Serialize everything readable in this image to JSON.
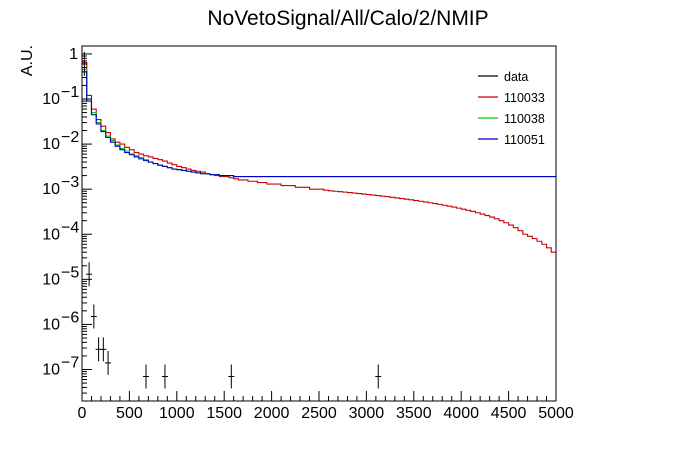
{
  "chart_data": {
    "type": "line",
    "title": "NoVetoSignal/All/Calo/2/NMIP",
    "xlabel": "",
    "ylabel": "A.U.",
    "xlim": [
      0,
      5000
    ],
    "ylim": [
      2e-08,
      1.5
    ],
    "yscale": "log",
    "grid": false,
    "legend_position": "top-right",
    "bin_width": 50,
    "x_ticks": [
      "0",
      "500",
      "1000",
      "1500",
      "2000",
      "2500",
      "3000",
      "3500",
      "4000",
      "4500",
      "5000"
    ],
    "y_ticks": [
      {
        "base": "1",
        "exp": ""
      },
      {
        "base": "10",
        "exp": "−1"
      },
      {
        "base": "10",
        "exp": "−2"
      },
      {
        "base": "10",
        "exp": "−3"
      },
      {
        "base": "10",
        "exp": "−4"
      },
      {
        "base": "10",
        "exp": "−5"
      },
      {
        "base": "10",
        "exp": "−6"
      },
      {
        "base": "10",
        "exp": "−7"
      }
    ],
    "data_points": {
      "name": "data",
      "color": "#000000",
      "points": [
        {
          "x": 25,
          "y": 0.6
        },
        {
          "x": 75,
          "y": 1.3e-05
        },
        {
          "x": 125,
          "y": 1.5e-06
        },
        {
          "x": 175,
          "y": 2.8e-07
        },
        {
          "x": 225,
          "y": 2.8e-07
        },
        {
          "x": 275,
          "y": 1.4e-07
        },
        {
          "x": 675,
          "y": 7e-08
        },
        {
          "x": 875,
          "y": 7e-08
        },
        {
          "x": 1575,
          "y": 7e-08
        },
        {
          "x": 3125,
          "y": 7e-08
        }
      ]
    },
    "series": [
      {
        "name": "110033",
        "color": "#cc0000",
        "values": [
          0.65,
          0.12,
          0.06,
          0.035,
          0.025,
          0.018,
          0.013,
          0.011,
          0.01,
          0.0085,
          0.0075,
          0.0065,
          0.006,
          0.0055,
          0.0052,
          0.0048,
          0.0045,
          0.0042,
          0.0038,
          0.0035,
          0.0032,
          0.003,
          0.0028,
          0.0026,
          0.0025,
          0.0024,
          0.0022,
          0.0021,
          0.002,
          0.0019,
          0.0019,
          0.0018,
          0.0017,
          0.0016,
          0.0016,
          0.0015,
          0.0015,
          0.0014,
          0.0014,
          0.0013,
          0.0013,
          0.0013,
          0.0012,
          0.0012,
          0.0012,
          0.0011,
          0.0011,
          0.0011,
          0.001,
          0.001,
          0.001,
          0.00095,
          0.00092,
          0.0009,
          0.00088,
          0.00086,
          0.00084,
          0.00082,
          0.0008,
          0.00078,
          0.00076,
          0.00074,
          0.00072,
          0.0007,
          0.00068,
          0.00066,
          0.00064,
          0.00062,
          0.0006,
          0.00058,
          0.00056,
          0.00054,
          0.00052,
          0.0005,
          0.00048,
          0.00046,
          0.00044,
          0.00042,
          0.0004,
          0.00038,
          0.00036,
          0.00034,
          0.00032,
          0.0003,
          0.00028,
          0.00026,
          0.00024,
          0.00022,
          0.0002,
          0.00018,
          0.00016,
          0.00014,
          0.00012,
          0.0001,
          9e-05,
          8e-05,
          7e-05,
          6e-05,
          5e-05,
          4e-05
        ]
      },
      {
        "name": "110038",
        "color": "#00cc00",
        "values": [
          0.45,
          0.1,
          0.05,
          0.03,
          0.02,
          0.015,
          0.012,
          0.0095,
          0.008,
          0.007,
          0.006,
          0.0055,
          0.005,
          0.0045,
          0.004,
          0.0037,
          0.0034,
          0.0032,
          0.003,
          0.0028,
          0.0027,
          0.0026,
          0.0025,
          0.0024,
          0.0023,
          0.0022,
          0.0022,
          0.0021,
          0.0021,
          0.002,
          0.002,
          0.002,
          0.0019,
          0.0019,
          0.0019,
          0.0019,
          0.0019,
          0.0019,
          0.0019,
          0.0019,
          0.0019,
          0.0019,
          0.0019,
          0.0019,
          0.0019,
          0.0019,
          0.0019,
          0.0019,
          0.0019,
          0.0019,
          0.0019,
          0.0019,
          0.0019,
          0.0019,
          0.0019,
          0.0019,
          0.0019,
          0.0019,
          0.0019,
          0.0019,
          0.0019,
          0.0019,
          0.0019,
          0.0019,
          0.0019,
          0.0019,
          0.0019,
          0.0019,
          0.0019,
          0.0019,
          0.0019,
          0.0019,
          0.0019,
          0.0019,
          0.0019,
          0.0019,
          0.0019,
          0.0019,
          0.0019,
          0.0019,
          0.0019,
          0.0019,
          0.0019,
          0.0019,
          0.0019,
          0.0019,
          0.0019,
          0.0019,
          0.0019,
          0.0019,
          0.0019,
          0.0019,
          0.0019,
          0.0019,
          0.0019,
          0.0019,
          0.0019,
          0.0019,
          0.0019,
          0.0019
        ]
      },
      {
        "name": "110051",
        "color": "#0000cc",
        "values": [
          0.4,
          0.09,
          0.045,
          0.028,
          0.019,
          0.014,
          0.011,
          0.009,
          0.0075,
          0.0065,
          0.0058,
          0.0052,
          0.0047,
          0.0043,
          0.004,
          0.0037,
          0.0034,
          0.0032,
          0.003,
          0.0028,
          0.0027,
          0.0026,
          0.0025,
          0.0024,
          0.0023,
          0.0022,
          0.0022,
          0.0021,
          0.0021,
          0.002,
          0.002,
          0.002,
          0.0019,
          0.0019,
          0.0019,
          0.0019,
          0.0019,
          0.0019,
          0.0019,
          0.0019,
          0.0019,
          0.0019,
          0.0019,
          0.0019,
          0.0019,
          0.0019,
          0.0019,
          0.0019,
          0.0019,
          0.0019,
          0.0019,
          0.0019,
          0.0019,
          0.0019,
          0.0019,
          0.0019,
          0.0019,
          0.0019,
          0.0019,
          0.0019,
          0.0019,
          0.0019,
          0.0019,
          0.0019,
          0.0019,
          0.0019,
          0.0019,
          0.0019,
          0.0019,
          0.0019,
          0.0019,
          0.0019,
          0.0019,
          0.0019,
          0.0019,
          0.0019,
          0.0019,
          0.0019,
          0.0019,
          0.0019,
          0.0019,
          0.0019,
          0.0019,
          0.0019,
          0.0019,
          0.0019,
          0.0019,
          0.0019,
          0.0019,
          0.0019,
          0.0019,
          0.0019,
          0.0019,
          0.0019,
          0.0019,
          0.0019,
          0.0019,
          0.0019,
          0.0019,
          0.0019
        ]
      }
    ]
  }
}
